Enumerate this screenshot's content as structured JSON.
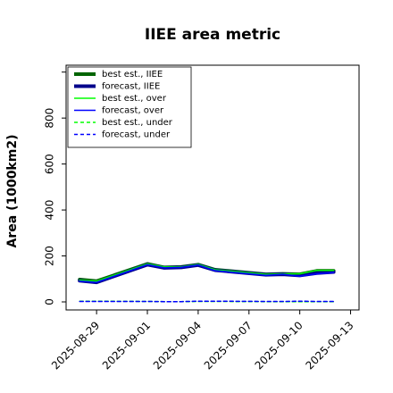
{
  "chart_data": {
    "type": "line",
    "title": "IIEE area metric",
    "xlabel": "",
    "ylabel": "Area (1000km2)",
    "ylim": [
      -35,
      1030
    ],
    "xlim_days": [
      -1.8,
      15.5
    ],
    "x_start_date": "2025-08-29",
    "yticks": [
      0,
      200,
      400,
      600,
      800
    ],
    "xticks": [
      "2025-08-29",
      "2025-09-01",
      "2025-09-04",
      "2025-09-07",
      "2025-09-10",
      "2025-09-13"
    ],
    "highlight_tick": "2025-09-04",
    "highlight_color": "#228B22",
    "legend_position": "upper-left",
    "series": [
      {
        "name": "best est., IIEE",
        "color": "#006400",
        "width": 4,
        "dash": "",
        "x": [
          "2025-08-28",
          "2025-08-29",
          "2025-09-01",
          "2025-09-02",
          "2025-09-03",
          "2025-09-04",
          "2025-09-05",
          "2025-09-08",
          "2025-09-09",
          "2025-09-10",
          "2025-09-11",
          "2025-09-12"
        ],
        "y": [
          97,
          90,
          165,
          150,
          152,
          162,
          140,
          120,
          122,
          120,
          135,
          135
        ]
      },
      {
        "name": "forecast, IIEE",
        "color": "#00008B",
        "width": 4,
        "dash": "",
        "x": [
          "2025-08-28",
          "2025-08-29",
          "2025-09-01",
          "2025-09-02",
          "2025-09-03",
          "2025-09-04",
          "2025-09-05",
          "2025-09-08",
          "2025-09-09",
          "2025-09-10",
          "2025-09-11",
          "2025-09-12"
        ],
        "y": [
          92,
          85,
          162,
          148,
          150,
          160,
          138,
          118,
          120,
          115,
          125,
          130
        ]
      },
      {
        "name": "best est., over",
        "color": "#00ff00",
        "width": 1.5,
        "dash": "",
        "x": [
          "2025-08-28",
          "2025-08-29",
          "2025-09-01",
          "2025-09-02",
          "2025-09-03",
          "2025-09-04",
          "2025-09-05",
          "2025-09-08",
          "2025-09-09",
          "2025-09-10",
          "2025-09-11",
          "2025-09-12"
        ],
        "y": [
          95,
          90,
          165,
          152,
          152,
          163,
          140,
          120,
          122,
          122,
          137,
          137
        ]
      },
      {
        "name": "forecast, over",
        "color": "#0000ff",
        "width": 1.5,
        "dash": "",
        "x": [
          "2025-08-28",
          "2025-08-29",
          "2025-09-01",
          "2025-09-02",
          "2025-09-03",
          "2025-09-04",
          "2025-09-05",
          "2025-09-08",
          "2025-09-09",
          "2025-09-10",
          "2025-09-11",
          "2025-09-12"
        ],
        "y": [
          90,
          85,
          162,
          148,
          150,
          160,
          136,
          116,
          120,
          112,
          122,
          128
        ]
      },
      {
        "name": "best est., under",
        "color": "#00ff00",
        "width": 1.5,
        "dash": "4,3",
        "x": [
          "2025-08-28",
          "2025-08-29",
          "2025-09-01",
          "2025-09-02",
          "2025-09-03",
          "2025-09-04",
          "2025-09-05",
          "2025-09-08",
          "2025-09-09",
          "2025-09-10",
          "2025-09-11",
          "2025-09-12"
        ],
        "y": [
          3,
          3,
          2,
          1,
          1,
          2,
          2,
          1,
          1,
          1,
          1,
          1
        ]
      },
      {
        "name": "forecast, under",
        "color": "#0000ff",
        "width": 1.5,
        "dash": "4,3",
        "x": [
          "2025-08-28",
          "2025-08-29",
          "2025-09-01",
          "2025-09-02",
          "2025-09-03",
          "2025-09-04",
          "2025-09-05",
          "2025-09-08",
          "2025-09-09",
          "2025-09-10",
          "2025-09-11",
          "2025-09-12"
        ],
        "y": [
          2,
          2,
          2,
          1,
          1,
          3,
          3,
          2,
          2,
          3,
          2,
          2
        ]
      }
    ]
  }
}
